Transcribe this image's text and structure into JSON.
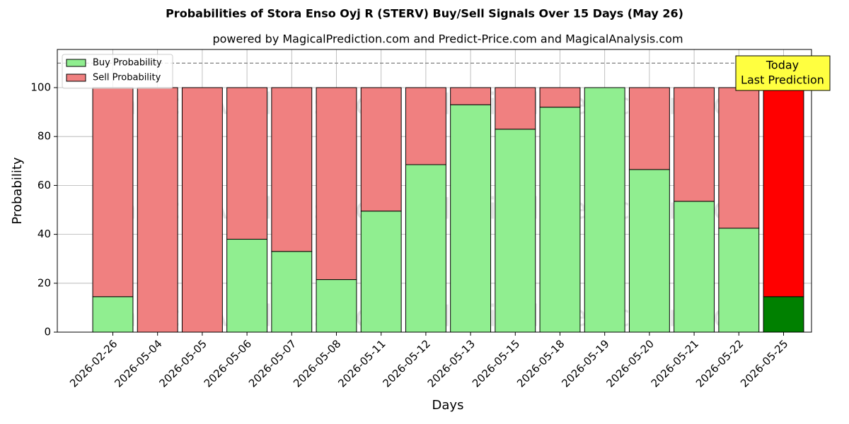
{
  "chart_data": {
    "type": "stacked_bar",
    "title": "Probabilities of Stora Enso Oyj R (STERV) Buy/Sell Signals Over 15 Days (May 26)",
    "subtitle": "powered by MagicalPrediction.com and Predict-Price.com and MagicalAnalysis.com",
    "x_label": "Days",
    "y_label": "Probability",
    "categories": [
      "2026-02-26",
      "2026-05-04",
      "2026-05-05",
      "2026-05-06",
      "2026-05-07",
      "2026-05-08",
      "2026-05-11",
      "2026-05-12",
      "2026-05-13",
      "2026-05-15",
      "2026-05-18",
      "2026-05-19",
      "2026-05-20",
      "2026-05-21",
      "2026-05-22",
      "2026-05-25"
    ],
    "series": [
      {
        "name": "Buy Probability",
        "color": "#90ee90",
        "highlight_color": "#008000",
        "values": [
          14.5,
          0,
          0,
          38,
          33,
          21.5,
          49.5,
          68.5,
          93,
          83,
          92,
          100,
          66.5,
          53.5,
          42.5,
          14.5
        ]
      },
      {
        "name": "Sell Probability",
        "color": "#f08080",
        "highlight_color": "#ff0000",
        "values": [
          85.5,
          100,
          100,
          62,
          67,
          78.5,
          50.5,
          31.5,
          7,
          17,
          8,
          0,
          33.5,
          46.5,
          57.5,
          85.5
        ]
      }
    ],
    "ylim": [
      0,
      115.6
    ],
    "yticks": [
      0,
      20,
      40,
      60,
      80,
      100
    ],
    "grid": true,
    "legend": "upper left",
    "reference_line": 110,
    "annotation": [
      "Today",
      "Last Prediction"
    ],
    "watermarks": [
      "MagicalAnalysis.com",
      "MagicalPrediction.com"
    ]
  }
}
